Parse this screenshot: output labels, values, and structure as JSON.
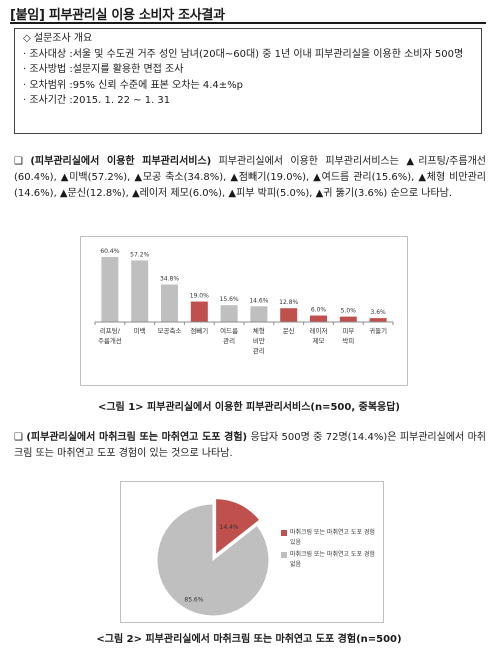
{
  "title": "[붙임] 피부관리실 이용 소비자 조사결과",
  "survey": {
    "heading": "◇ 설문조사 개요",
    "rows": [
      {
        "key": "· 조사대상 : ",
        "value": "서울 및 수도권 거주 성인 남녀(20대~60대) 중 1년 이내 피부관리실을 이용한 소비자 500명"
      },
      {
        "key": "· 조사방법 : ",
        "value": "설문지를 활용한 면접 조사"
      },
      {
        "key": "· 오차범위 : ",
        "value": "95% 신뢰 수준에 표본 오차는 4.4±%p"
      },
      {
        "key": "· 조사기간 : ",
        "value": "2015. 1. 22 ~ 1. 31"
      }
    ]
  },
  "section1": {
    "marker": "❑ ",
    "heading": "(피부관리실에서 이용한 피부관리서비스)",
    "body": " 피부관리실에서 이용한 피부관리서비스는 ▲리프팅/주름개선(60.4%), ▲미백(57.2%), ▲모공 축소(34.8%), ▲점빼기(19.0%), ▲여드름 관리(15.6%), ▲체형 비만관리(14.6%), ▲문신(12.8%), ▲레이저 제모(6.0%), ▲피부 박피(5.0%), ▲귀 뚫기(3.6%) 순으로 나타남."
  },
  "caption1": "<그림 1> 피부관리실에서 이용한 피부관리서비스(n=500, 중복응답)",
  "section2": {
    "marker": "❑ ",
    "heading": "(피부관리실에서 마취크림 또는 마취연고 도포 경험)",
    "body": " 응답자 500명 중 72명(14.4%)은 피부관리실에서 마취크림 또는 마취연고 도포 경험이 있는 것으로 나타남."
  },
  "caption2": "<그림 2> 피부관리실에서 마취크림 또는 마취연고 도포 경험(n=500)",
  "colors": {
    "gray": "#bfbfbf",
    "red": "#c0504d"
  },
  "chart_data": [
    {
      "type": "bar",
      "categories": [
        [
          "리프팅/",
          "주름개선"
        ],
        [
          "미백"
        ],
        [
          "모공축소"
        ],
        [
          "점빼기"
        ],
        [
          "여드름",
          "관리"
        ],
        [
          "체형",
          "비만",
          "관리"
        ],
        [
          "문신"
        ],
        [
          "레이저",
          "제모"
        ],
        [
          "피부",
          "박피"
        ],
        [
          "귀뚫기"
        ]
      ],
      "values": [
        60.4,
        57.2,
        34.8,
        19.0,
        15.6,
        14.6,
        12.8,
        6.0,
        5.0,
        3.6
      ],
      "value_labels": [
        "60.4%",
        "57.2%",
        "34.8%",
        "19.0%",
        "15.6%",
        "14.6%",
        "12.8%",
        "6.0%",
        "5.0%",
        "3.6%"
      ],
      "highlight": [
        false,
        false,
        false,
        true,
        false,
        false,
        true,
        true,
        true,
        true
      ],
      "ylim": [
        0,
        65
      ],
      "grid": false
    },
    {
      "type": "pie",
      "slices": [
        {
          "name": "마취크림 또는 마취연고 도포 경험 있음",
          "value": 14.4,
          "label": "14.4%",
          "color": "#c0504d"
        },
        {
          "name": "마취크림 또는 마취연고 도포 경험 없음",
          "value": 85.6,
          "label": "85.6%",
          "color": "#bfbfbf"
        }
      ],
      "legend": "right"
    }
  ]
}
